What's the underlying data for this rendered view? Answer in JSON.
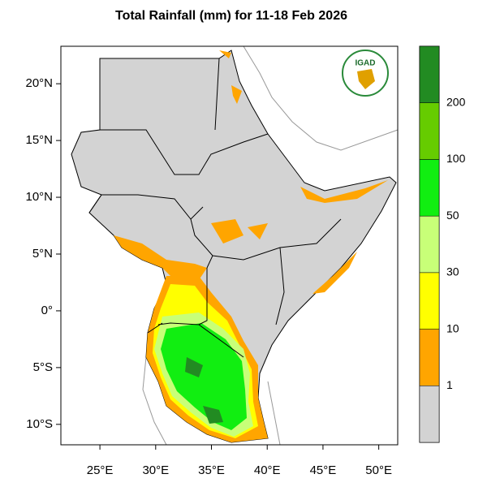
{
  "map": {
    "title": "Total Rainfall (mm) for 11-18 Feb 2026",
    "logo": "IGAD",
    "xlim": [
      21.5,
      51.7
    ],
    "ylim": [
      -11.8,
      23.3
    ],
    "xticks": [
      {
        "value": 25,
        "label": "25°E"
      },
      {
        "value": 30,
        "label": "30°E"
      },
      {
        "value": 35,
        "label": "35°E"
      },
      {
        "value": 40,
        "label": "40°E"
      },
      {
        "value": 45,
        "label": "45°E"
      },
      {
        "value": 50,
        "label": "50°E"
      }
    ],
    "yticks": [
      {
        "value": 20,
        "label": "20°N"
      },
      {
        "value": 15,
        "label": "15°N"
      },
      {
        "value": 10,
        "label": "10°N"
      },
      {
        "value": 5,
        "label": "5°N"
      },
      {
        "value": 0,
        "label": "0°"
      },
      {
        "value": -5,
        "label": "5°S"
      },
      {
        "value": -10,
        "label": "10°S"
      }
    ],
    "colorbar": {
      "levels": [
        1,
        10,
        30,
        50,
        100,
        200
      ],
      "colors": [
        "#d3d3d3",
        "#ffa500",
        "#ffff00",
        "#c8ff78",
        "#11ee11",
        "#66cc00",
        "#228b22"
      ]
    }
  }
}
